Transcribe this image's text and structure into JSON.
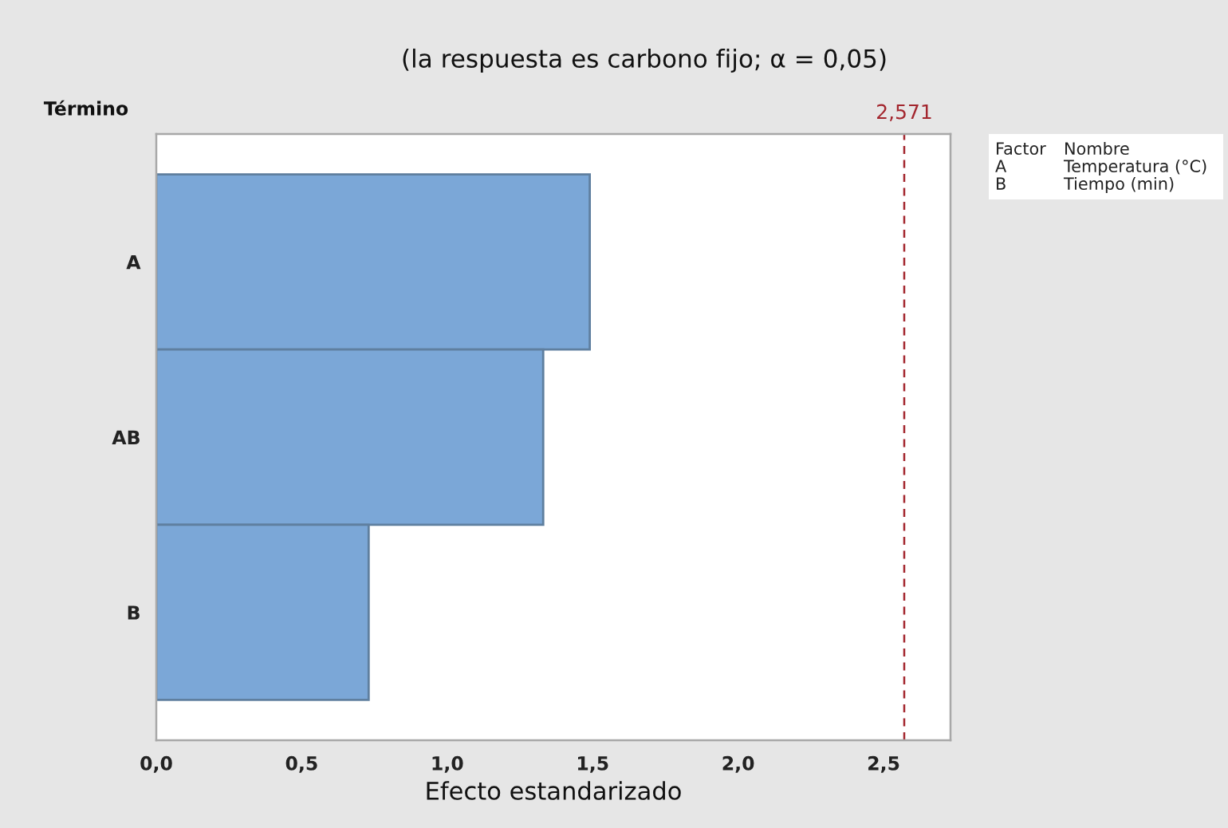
{
  "chart_data": {
    "type": "bar",
    "orientation": "horizontal",
    "title": "(la respuesta es carbono fijo; α = 0,05)",
    "xlabel": "Efecto estandarizado",
    "ylabel": "Término",
    "categories": [
      "A",
      "AB",
      "B"
    ],
    "values": [
      1.49,
      1.33,
      0.73
    ],
    "color": "#7ba7d7",
    "xlim": [
      0,
      2.73
    ],
    "xticks": [
      {
        "value": 0,
        "label": "0,0"
      },
      {
        "value": 0.5,
        "label": "0,5"
      },
      {
        "value": 1.0,
        "label": "1,0"
      },
      {
        "value": 1.5,
        "label": "1,5"
      },
      {
        "value": 2.0,
        "label": "2,0"
      },
      {
        "value": 2.5,
        "label": "2,5"
      }
    ],
    "ref_lines": [
      {
        "axis": "x",
        "value": 2.571,
        "label": "2,571",
        "color": "#a3262e",
        "line_style": "dashed"
      }
    ],
    "annotations": [
      "Factor",
      "Nombre",
      "A",
      "Temperatura (°C)",
      "B",
      "Tiempo (min)"
    ],
    "grid": false
  }
}
